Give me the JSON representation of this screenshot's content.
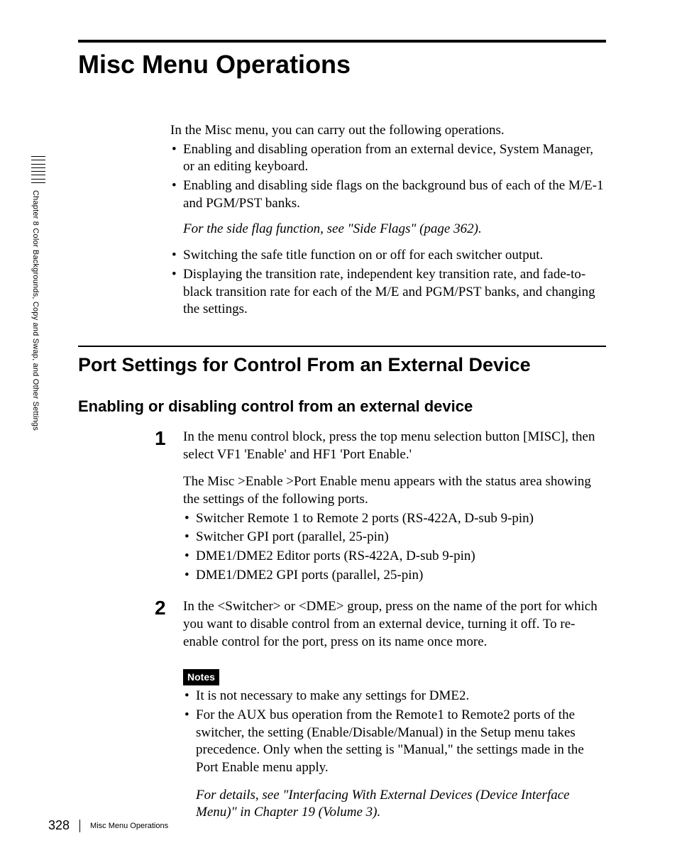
{
  "sidebar": {
    "text": "Chapter 8  Color Backgrounds, Copy and Swap, and Other Settings"
  },
  "h1": "Misc Menu Operations",
  "intro": {
    "lead": "In the Misc menu, you can carry out the following operations.",
    "bullets_a": [
      "Enabling and disabling operation from an external device, System Manager, or an editing keyboard.",
      "Enabling and disabling side flags on the background bus of each of the M/E-1 and PGM/PST banks."
    ],
    "note": "For the side flag function, see \"Side Flags\" (page 362).",
    "bullets_b": [
      "Switching the safe title function on or off for each switcher output.",
      "Displaying the transition rate, independent key transition rate, and fade-to-black transition rate for each of the M/E and PGM/PST banks, and changing the settings."
    ]
  },
  "h2": "Port Settings for Control From an External Device",
  "h3": "Enabling or disabling control from an external device",
  "steps": {
    "s1": {
      "num": "1",
      "p1": "In the menu control block, press the top menu selection button [MISC], then select VF1 'Enable' and HF1 'Port Enable.'",
      "p2": "The Misc >Enable >Port Enable menu appears with the status area showing the settings of the following ports.",
      "bullets": [
        "Switcher Remote 1 to Remote 2 ports (RS-422A, D-sub 9-pin)",
        "Switcher GPI port (parallel, 25-pin)",
        "DME1/DME2 Editor ports (RS-422A, D-sub 9-pin)",
        "DME1/DME2 GPI ports (parallel, 25-pin)"
      ]
    },
    "s2": {
      "num": "2",
      "p1": "In the <Switcher> or <DME> group, press on the name of the port for which you want to disable control from an external device, turning it off. To re-enable control for the port, press on its name once more.",
      "notes_label": "Notes",
      "notes": [
        "It is not necessary to make any settings for DME2.",
        "For the AUX bus operation from the Remote1 to Remote2 ports of the switcher, the setting (Enable/Disable/Manual) in the Setup menu takes precedence. Only when the setting is \"Manual,\" the settings made in the Port Enable menu apply."
      ],
      "note_italic": "For details, see \"Interfacing With External Devices (Device Interface Menu)\" in Chapter 19 (Volume 3)."
    }
  },
  "footer": {
    "page": "328",
    "title": "Misc Menu Operations"
  }
}
